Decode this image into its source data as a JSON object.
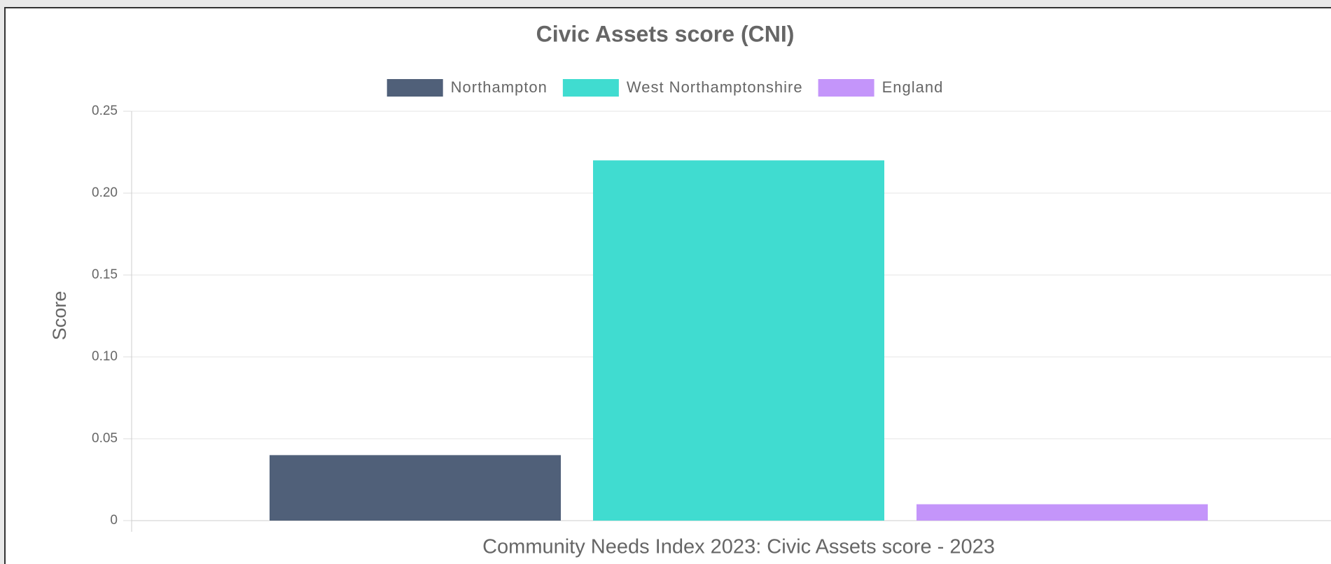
{
  "chart_data": {
    "type": "bar",
    "title": "Civic Assets score (CNI)",
    "x_label": "Community Needs Index 2023: Civic Assets score - 2023",
    "y_label": "Score",
    "categories": [
      "Community Needs Index 2023: Civic Assets score - 2023"
    ],
    "series": [
      {
        "name": "Northampton",
        "color": "#506079",
        "values": [
          0.04
        ]
      },
      {
        "name": "West Northamptonshire",
        "color": "#40dcd0",
        "values": [
          0.22
        ]
      },
      {
        "name": "England",
        "color": "#c495fa",
        "values": [
          0.01
        ]
      }
    ],
    "ylim": [
      0,
      0.25
    ],
    "yticks": [
      0,
      0.05,
      {
        "value": 0.1,
        "label": "0.10"
      },
      0.15,
      {
        "value": 0.2,
        "label": "0.20"
      },
      0.25
    ],
    "grid": true,
    "legend": "top"
  }
}
